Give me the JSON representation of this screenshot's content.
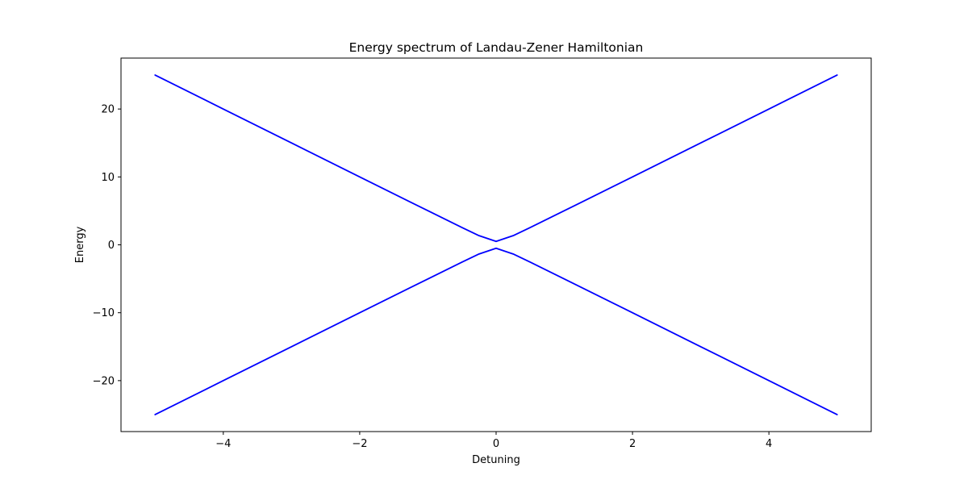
{
  "chart_data": {
    "type": "line",
    "title": "Energy spectrum of Landau-Zener Hamiltonian",
    "xlabel": "Detuning",
    "ylabel": "Energy",
    "xlim": [
      -5.5,
      5.5
    ],
    "ylim": [
      -27.5,
      27.5
    ],
    "xticks": [
      -4,
      -2,
      0,
      2,
      4
    ],
    "xtick_labels": [
      "−4",
      "−2",
      "0",
      "2",
      "4"
    ],
    "yticks": [
      -20,
      -10,
      0,
      10,
      20
    ],
    "ytick_labels": [
      "−20",
      "−10",
      "0",
      "10",
      "20"
    ],
    "grid": false,
    "line_color": "#0000ff",
    "series": [
      {
        "x": [
          -5,
          -4,
          -3,
          -2,
          -1,
          -0.5,
          -0.25,
          0,
          0.25,
          0.5,
          1,
          2,
          3,
          4,
          5
        ],
        "y": [
          25.0,
          20.0,
          15.0,
          10.0,
          5.02,
          2.55,
          1.35,
          0.5,
          1.35,
          2.55,
          5.02,
          10.0,
          15.0,
          20.0,
          25.0
        ]
      },
      {
        "x": [
          -5,
          -4,
          -3,
          -2,
          -1,
          -0.5,
          -0.25,
          0,
          0.25,
          0.5,
          1,
          2,
          3,
          4,
          5
        ],
        "y": [
          -25.0,
          -20.0,
          -15.0,
          -10.0,
          -5.02,
          -2.55,
          -1.35,
          -0.5,
          -1.35,
          -2.55,
          -5.02,
          -10.0,
          -15.0,
          -20.0,
          -25.0
        ]
      }
    ]
  }
}
